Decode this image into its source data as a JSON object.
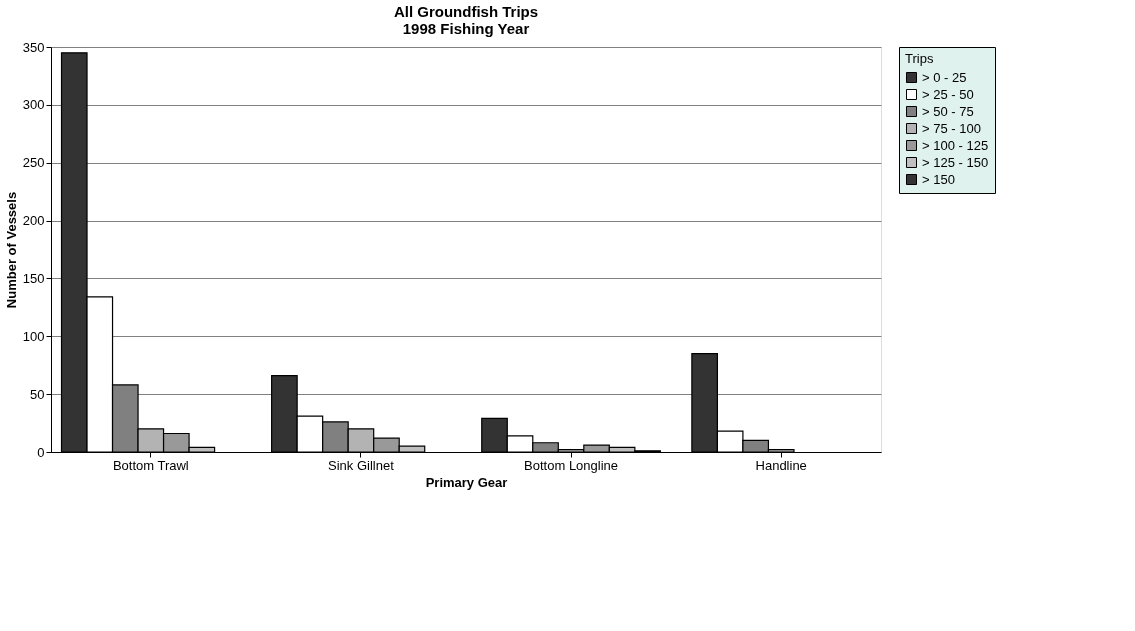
{
  "chart_data": {
    "type": "bar",
    "title": "All Groundfish Trips\n1998 Fishing Year",
    "xlabel": "Primary Gear",
    "ylabel": "Number of Vessels",
    "legend_title": "Trips",
    "categories": [
      "Bottom Trawl",
      "Sink Gillnet",
      "Bottom Longline",
      "Handline"
    ],
    "series": [
      {
        "name": "> 0 - 25",
        "color": "#333333",
        "values": [
          345,
          66,
          29,
          85
        ]
      },
      {
        "name": "> 25 - 50",
        "color": "#ffffff",
        "values": [
          134,
          31,
          14,
          18
        ]
      },
      {
        "name": "> 50 - 75",
        "color": "#808080",
        "values": [
          58,
          26,
          8,
          10
        ]
      },
      {
        "name": "> 75 - 100",
        "color": "#b3b3b3",
        "values": [
          20,
          20,
          2,
          2
        ]
      },
      {
        "name": "> 100 - 125",
        "color": "#999999",
        "values": [
          16,
          12,
          6,
          null
        ]
      },
      {
        "name": "> 125 - 150",
        "color": "#bfbfbf",
        "values": [
          4,
          5,
          4,
          null
        ]
      },
      {
        "name": "> 150",
        "color": "#333333",
        "values": [
          null,
          null,
          1,
          null
        ]
      }
    ],
    "ylim": [
      0,
      350
    ],
    "yticks": [
      0,
      50,
      100,
      150,
      200,
      250,
      300,
      350
    ],
    "grid": "y",
    "legend": "right"
  }
}
